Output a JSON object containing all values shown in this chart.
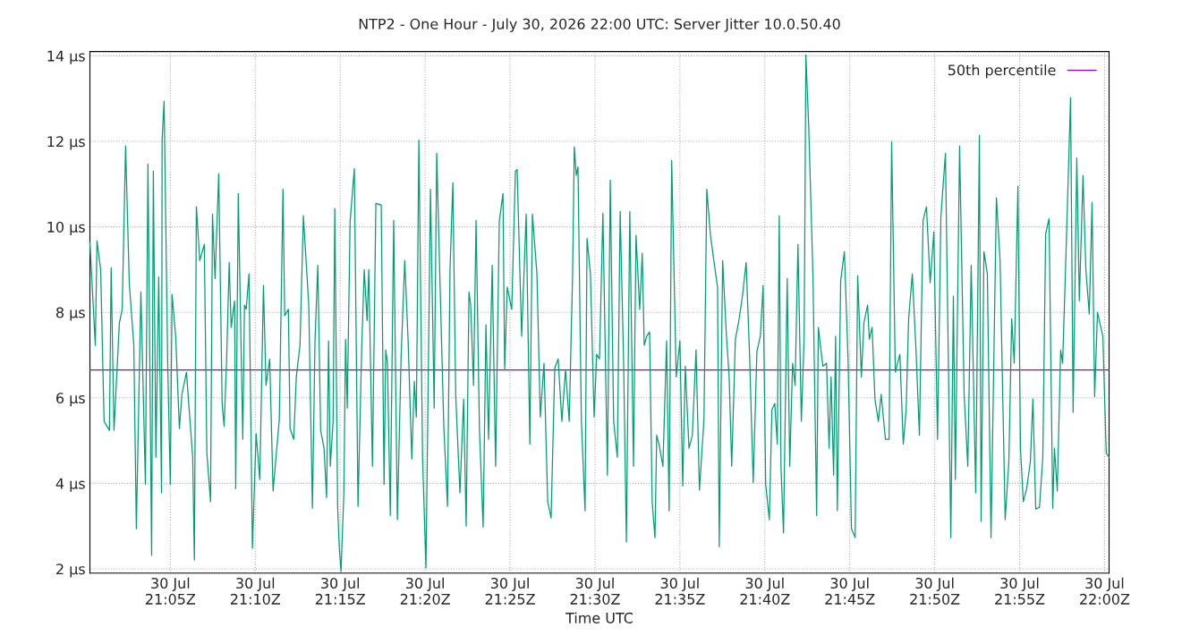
{
  "chart_data": {
    "type": "line",
    "title": "NTP2 - One Hour - July 30, 2026 22:00 UTC: Server Jitter 10.0.50.40",
    "xlabel": "Time UTC",
    "xlim": [
      "2026-07-30T21:00:16",
      "2026-07-30T22:00:16"
    ],
    "xticks": [
      {
        "value": "2026-07-30T21:05",
        "label": "30 Jul\n21:05Z"
      },
      {
        "value": "2026-07-30T21:10",
        "label": "30 Jul\n21:10Z"
      },
      {
        "value": "2026-07-30T21:15",
        "label": "30 Jul\n21:15Z"
      },
      {
        "value": "2026-07-30T21:20",
        "label": "30 Jul\n21:20Z"
      },
      {
        "value": "2026-07-30T21:25",
        "label": "30 Jul\n21:25Z"
      },
      {
        "value": "2026-07-30T21:30",
        "label": "30 Jul\n21:30Z"
      },
      {
        "value": "2026-07-30T21:35",
        "label": "30 Jul\n21:35Z"
      },
      {
        "value": "2026-07-30T21:40",
        "label": "30 Jul\n21:40Z"
      },
      {
        "value": "2026-07-30T21:45",
        "label": "30 Jul\n21:45Z"
      },
      {
        "value": "2026-07-30T21:50",
        "label": "30 Jul\n21:50Z"
      },
      {
        "value": "2026-07-30T21:55",
        "label": "30 Jul\n21:55Z"
      },
      {
        "value": "2026-07-30T22:00",
        "label": "30 Jul\n22:00Z"
      }
    ],
    "ylim": [
      1.9,
      14.1
    ],
    "yticks": [
      {
        "value": 2,
        "label": "2 µs"
      },
      {
        "value": 4,
        "label": "4 µs"
      },
      {
        "value": 6,
        "label": "6 µs"
      },
      {
        "value": 8,
        "label": "8 µs"
      },
      {
        "value": 10,
        "label": "10 µs"
      },
      {
        "value": 12,
        "label": "12 µs"
      },
      {
        "value": 14,
        "label": "14 µs"
      }
    ],
    "grid": true,
    "legend": "top right",
    "line_style": "solid",
    "series": [
      {
        "name": "50th percentile",
        "color": "#9400d3",
        "x": [
          "2026-07-30T21:00:16",
          "2026-07-30T22:00:16"
        ],
        "values": [
          6.65,
          6.65
        ]
      },
      {
        "color": "#009e73",
        "x": [
          "2026-07-30T21:00:16",
          "2026-07-30T21:00:35",
          "2026-07-30T21:00:41",
          "2026-07-30T21:00:54",
          "2026-07-30T21:01:06",
          "2026-07-30T21:01:25",
          "2026-07-30T21:01:31",
          "2026-07-30T21:01:41",
          "2026-07-30T21:02:00",
          "2026-07-30T21:02:10",
          "2026-07-30T21:02:22",
          "2026-07-30T21:02:35",
          "2026-07-30T21:02:51",
          "2026-07-30T21:03:00",
          "2026-07-30T21:03:16",
          "2026-07-30T21:03:32",
          "2026-07-30T21:03:41",
          "2026-07-30T21:03:54",
          "2026-07-30T21:04:00",
          "2026-07-30T21:04:09",
          "2026-07-30T21:04:19",
          "2026-07-30T21:04:29",
          "2026-07-30T21:04:31",
          "2026-07-30T21:04:38",
          "2026-07-30T21:04:51",
          "2026-07-30T21:05:00",
          "2026-07-30T21:05:06",
          "2026-07-30T21:05:19",
          "2026-07-30T21:05:32",
          "2026-07-30T21:05:41",
          "2026-07-30T21:05:57",
          "2026-07-30T21:06:19",
          "2026-07-30T21:06:25",
          "2026-07-30T21:06:32",
          "2026-07-30T21:06:44",
          "2026-07-30T21:07:00",
          "2026-07-30T21:07:09",
          "2026-07-30T21:07:22",
          "2026-07-30T21:07:29",
          "2026-07-30T21:07:38",
          "2026-07-30T21:07:51",
          "2026-07-30T21:08:03",
          "2026-07-30T21:08:10",
          "2026-07-30T21:08:19",
          "2026-07-30T21:08:28",
          "2026-07-30T21:08:35",
          "2026-07-30T21:08:47",
          "2026-07-30T21:08:51",
          "2026-07-30T21:09:00",
          "2026-07-30T21:09:16",
          "2026-07-30T21:09:22",
          "2026-07-30T21:09:28",
          "2026-07-30T21:09:38",
          "2026-07-30T21:09:50",
          "2026-07-30T21:10:03",
          "2026-07-30T21:10:16",
          "2026-07-30T21:10:29",
          "2026-07-30T21:10:38",
          "2026-07-30T21:10:51",
          "2026-07-30T21:11:03",
          "2026-07-30T21:11:16",
          "2026-07-30T21:11:25",
          "2026-07-30T21:11:38",
          "2026-07-30T21:11:44",
          "2026-07-30T21:11:57",
          "2026-07-30T21:12:03",
          "2026-07-30T21:12:16",
          "2026-07-30T21:12:25",
          "2026-07-30T21:12:38",
          "2026-07-30T21:12:50",
          "2026-07-30T21:13:09",
          "2026-07-30T21:13:22",
          "2026-07-30T21:13:31",
          "2026-07-30T21:13:41",
          "2026-07-30T21:13:51",
          "2026-07-30T21:14:03",
          "2026-07-30T21:14:12",
          "2026-07-30T21:14:19",
          "2026-07-30T21:14:25",
          "2026-07-30T21:14:35",
          "2026-07-30T21:14:41",
          "2026-07-30T21:14:51",
          "2026-07-30T21:14:57",
          "2026-07-30T21:15:03",
          "2026-07-30T21:15:13",
          "2026-07-30T21:15:19",
          "2026-07-30T21:15:25",
          "2026-07-30T21:15:35",
          "2026-07-30T21:15:50",
          "2026-07-30T21:16:03",
          "2026-07-30T21:16:16",
          "2026-07-30T21:16:25",
          "2026-07-30T21:16:35",
          "2026-07-30T21:16:41",
          "2026-07-30T21:16:54",
          "2026-07-30T21:17:06",
          "2026-07-30T21:17:25",
          "2026-07-30T21:17:35",
          "2026-07-30T21:17:41",
          "2026-07-30T21:17:47",
          "2026-07-30T21:17:57",
          "2026-07-30T21:18:09",
          "2026-07-30T21:18:22",
          "2026-07-30T21:18:35",
          "2026-07-30T21:18:48",
          "2026-07-30T21:19:00",
          "2026-07-30T21:19:13",
          "2026-07-30T21:19:22",
          "2026-07-30T21:19:29",
          "2026-07-30T21:19:38",
          "2026-07-30T21:19:51",
          "2026-07-30T21:20:03",
          "2026-07-30T21:20:19",
          "2026-07-30T21:20:32",
          "2026-07-30T21:20:41",
          "2026-07-30T21:20:54",
          "2026-07-30T21:21:06",
          "2026-07-30T21:21:19",
          "2026-07-30T21:21:28",
          "2026-07-30T21:21:38",
          "2026-07-30T21:21:48",
          "2026-07-30T21:22:03",
          "2026-07-30T21:22:16",
          "2026-07-30T21:22:25",
          "2026-07-30T21:22:35",
          "2026-07-30T21:22:41",
          "2026-07-30T21:22:51",
          "2026-07-30T21:23:00",
          "2026-07-30T21:23:12",
          "2026-07-30T21:23:25",
          "2026-07-30T21:23:35",
          "2026-07-30T21:23:44",
          "2026-07-30T21:23:57",
          "2026-07-30T21:24:09",
          "2026-07-30T21:24:22",
          "2026-07-30T21:24:35",
          "2026-07-30T21:24:41",
          "2026-07-30T21:24:50",
          "2026-07-30T21:25:06",
          "2026-07-30T21:25:19",
          "2026-07-30T21:25:25",
          "2026-07-30T21:25:41",
          "2026-07-30T21:25:57",
          "2026-07-30T21:26:10",
          "2026-07-30T21:26:19",
          "2026-07-30T21:26:35",
          "2026-07-30T21:26:47",
          "2026-07-30T21:27:00",
          "2026-07-30T21:27:13",
          "2026-07-30T21:27:25",
          "2026-07-30T21:27:38",
          "2026-07-30T21:27:50",
          "2026-07-30T21:28:03",
          "2026-07-30T21:28:16",
          "2026-07-30T21:28:29",
          "2026-07-30T21:28:41",
          "2026-07-30T21:28:47",
          "2026-07-30T21:28:54",
          "2026-07-30T21:29:00",
          "2026-07-30T21:29:12",
          "2026-07-30T21:29:25",
          "2026-07-30T21:29:32",
          "2026-07-30T21:29:44",
          "2026-07-30T21:29:57",
          "2026-07-30T21:30:06",
          "2026-07-30T21:30:16",
          "2026-07-30T21:30:28",
          "2026-07-30T21:30:44",
          "2026-07-30T21:30:54",
          "2026-07-30T21:31:06",
          "2026-07-30T21:31:19",
          "2026-07-30T21:31:29",
          "2026-07-30T21:31:41",
          "2026-07-30T21:31:51",
          "2026-07-30T21:32:03",
          "2026-07-30T21:32:16",
          "2026-07-30T21:32:25",
          "2026-07-30T21:32:38",
          "2026-07-30T21:32:47",
          "2026-07-30T21:32:54",
          "2026-07-30T21:33:03",
          "2026-07-30T21:33:13",
          "2026-07-30T21:33:22",
          "2026-07-30T21:33:32",
          "2026-07-30T21:33:38",
          "2026-07-30T21:33:48",
          "2026-07-30T21:34:00",
          "2026-07-30T21:34:13",
          "2026-07-30T21:34:22",
          "2026-07-30T21:34:31",
          "2026-07-30T21:34:47",
          "2026-07-30T21:35:00",
          "2026-07-30T21:35:10",
          "2026-07-30T21:35:19",
          "2026-07-30T21:35:32",
          "2026-07-30T21:35:44",
          "2026-07-30T21:35:57",
          "2026-07-30T21:36:09",
          "2026-07-30T21:36:25",
          "2026-07-30T21:36:35",
          "2026-07-30T21:36:48",
          "2026-07-30T21:37:00",
          "2026-07-30T21:37:13",
          "2026-07-30T21:37:19",
          "2026-07-30T21:37:31",
          "2026-07-30T21:37:44",
          "2026-07-30T21:37:54",
          "2026-07-30T21:38:03",
          "2026-07-30T21:38:16",
          "2026-07-30T21:38:28",
          "2026-07-30T21:38:41",
          "2026-07-30T21:38:54",
          "2026-07-30T21:39:06",
          "2026-07-30T21:39:19",
          "2026-07-30T21:39:32",
          "2026-07-30T21:39:44",
          "2026-07-30T21:39:54",
          "2026-07-30T21:40:03",
          "2026-07-30T21:40:16",
          "2026-07-30T21:40:25",
          "2026-07-30T21:40:35",
          "2026-07-30T21:40:44",
          "2026-07-30T21:40:51",
          "2026-07-30T21:40:57",
          "2026-07-30T21:41:06",
          "2026-07-30T21:41:19",
          "2026-07-30T21:41:28",
          "2026-07-30T21:41:38",
          "2026-07-30T21:41:47",
          "2026-07-30T21:41:57",
          "2026-07-30T21:42:09",
          "2026-07-30T21:42:19",
          "2026-07-30T21:42:25",
          "2026-07-30T21:42:35",
          "2026-07-30T21:42:50",
          "2026-07-30T21:43:03",
          "2026-07-30T21:43:09",
          "2026-07-30T21:43:25",
          "2026-07-30T21:43:38",
          "2026-07-30T21:43:47",
          "2026-07-30T21:43:54",
          "2026-07-30T21:44:03",
          "2026-07-30T21:44:10",
          "2026-07-30T21:44:16",
          "2026-07-30T21:44:28",
          "2026-07-30T21:44:41",
          "2026-07-30T21:44:54",
          "2026-07-30T21:45:06",
          "2026-07-30T21:45:19",
          "2026-07-30T21:45:28",
          "2026-07-30T21:45:41",
          "2026-07-30T21:45:50",
          "2026-07-30T21:46:03",
          "2026-07-30T21:46:09",
          "2026-07-30T21:46:19",
          "2026-07-30T21:46:29",
          "2026-07-30T21:46:41",
          "2026-07-30T21:46:51",
          "2026-07-30T21:47:06",
          "2026-07-30T21:47:19",
          "2026-07-30T21:47:28",
          "2026-07-30T21:47:41",
          "2026-07-30T21:47:57",
          "2026-07-30T21:48:09",
          "2026-07-30T21:48:19",
          "2026-07-30T21:48:28",
          "2026-07-30T21:48:41",
          "2026-07-30T21:48:54",
          "2026-07-30T21:49:06",
          "2026-07-30T21:49:19",
          "2026-07-30T21:49:31",
          "2026-07-30T21:49:44",
          "2026-07-30T21:49:57",
          "2026-07-30T21:50:10",
          "2026-07-30T21:50:22",
          "2026-07-30T21:50:38",
          "2026-07-30T21:50:57",
          "2026-07-30T21:51:06",
          "2026-07-30T21:51:13",
          "2026-07-30T21:51:28",
          "2026-07-30T21:51:44",
          "2026-07-30T21:51:57",
          "2026-07-30T21:52:09",
          "2026-07-30T21:52:25",
          "2026-07-30T21:52:38",
          "2026-07-30T21:52:44",
          "2026-07-30T21:52:54",
          "2026-07-30T21:53:06",
          "2026-07-30T21:53:19",
          "2026-07-30T21:53:38",
          "2026-07-30T21:53:51",
          "2026-07-30T21:54:09",
          "2026-07-30T21:54:22",
          "2026-07-30T21:54:32",
          "2026-07-30T21:54:41",
          "2026-07-30T21:54:54",
          "2026-07-30T21:55:03",
          "2026-07-30T21:55:13",
          "2026-07-30T21:55:25",
          "2026-07-30T21:55:38",
          "2026-07-30T21:55:47",
          "2026-07-30T21:55:57",
          "2026-07-30T21:56:10",
          "2026-07-30T21:56:22",
          "2026-07-30T21:56:32",
          "2026-07-30T21:56:44",
          "2026-07-30T21:56:57",
          "2026-07-30T21:57:03",
          "2026-07-30T21:57:13",
          "2026-07-30T21:57:25",
          "2026-07-30T21:57:32",
          "2026-07-30T21:57:44",
          "2026-07-30T21:58:00",
          "2026-07-30T21:58:09",
          "2026-07-30T21:58:22",
          "2026-07-30T21:58:31",
          "2026-07-30T21:58:44",
          "2026-07-30T21:58:54",
          "2026-07-30T21:59:06",
          "2026-07-30T21:59:16",
          "2026-07-30T21:59:25",
          "2026-07-30T21:59:35",
          "2026-07-30T21:59:54",
          "2026-07-30T22:00:06",
          "2026-07-30T22:00:16"
        ],
        "values": [
          9.63,
          7.23,
          9.67,
          9.0,
          5.45,
          5.24,
          9.04,
          5.24,
          7.75,
          8.07,
          11.89,
          8.69,
          7.23,
          2.94,
          8.48,
          3.98,
          11.47,
          2.32,
          11.3,
          4.61,
          8.83,
          3.78,
          12.03,
          12.94,
          6.7,
          3.98,
          8.42,
          7.44,
          5.28,
          6.08,
          6.6,
          4.61,
          2.21,
          10.47,
          9.21,
          9.59,
          4.71,
          3.57,
          10.3,
          8.79,
          11.24,
          5.87,
          5.34,
          6.91,
          9.17,
          7.65,
          8.27,
          3.88,
          10.78,
          5.03,
          8.17,
          8.07,
          8.9,
          2.48,
          5.16,
          4.09,
          8.63,
          6.29,
          6.91,
          3.82,
          4.82,
          5.49,
          10.88,
          7.92,
          8.07,
          5.28,
          5.03,
          6.49,
          7.23,
          10.26,
          8.17,
          3.42,
          7.33,
          9.1,
          5.24,
          4.82,
          3.67,
          7.33,
          4.4,
          5.45,
          10.43,
          3.46,
          2.48,
          1.94,
          3.78,
          7.37,
          5.76,
          10.12,
          11.36,
          3.46,
          7.16,
          9.0,
          7.81,
          9.0,
          4.4,
          10.55,
          10.51,
          3.98,
          7.12,
          6.81,
          3.25,
          10.15,
          3.15,
          6.91,
          9.21,
          7.33,
          4.57,
          6.39,
          5.55,
          12.03,
          4.61,
          2.02,
          10.88,
          5.76,
          11.72,
          8.34,
          5.34,
          3.46,
          9.0,
          11.03,
          6.08,
          3.78,
          5.97,
          3.0,
          8.48,
          8.17,
          6.29,
          10.15,
          5.24,
          2.98,
          7.71,
          5.03,
          9.1,
          4.4,
          10.12,
          10.78,
          6.66,
          8.59,
          8.07,
          11.3,
          11.34,
          7.44,
          10.3,
          4.92,
          10.3,
          8.9,
          5.55,
          6.81,
          3.57,
          3.19,
          6.7,
          6.91,
          5.45,
          6.66,
          5.45,
          8.9,
          11.87,
          11.2,
          11.4,
          5.45,
          3.36,
          9.73,
          8.9,
          5.55,
          7.02,
          6.91,
          10.32,
          4.19,
          11.09,
          5.45,
          4.61,
          10.36,
          6.91,
          2.63,
          10.36,
          4.4,
          9.8,
          8.07,
          9.38,
          7.23,
          7.44,
          7.54,
          3.57,
          2.73,
          5.13,
          4.86,
          4.4,
          7.33,
          3.36,
          11.55,
          6.49,
          7.33,
          3.94,
          6.74,
          4.82,
          5.13,
          7.12,
          3.84,
          5.49,
          10.88,
          9.8,
          9.21,
          8.59,
          2.52,
          9.21,
          7.5,
          6.49,
          4.4,
          7.37,
          7.79,
          8.38,
          9.17,
          7.02,
          4.02,
          7.08,
          7.44,
          8.63,
          3.98,
          3.15,
          5.72,
          5.87,
          4.92,
          10.26,
          4.4,
          2.84,
          8.79,
          4.4,
          6.81,
          6.29,
          9.59,
          5.45,
          7.44,
          14.02,
          12.36,
          8.86,
          3.25,
          7.65,
          6.74,
          6.81,
          4.82,
          6.49,
          4.19,
          7.44,
          3.36,
          8.75,
          9.42,
          6.91,
          2.94,
          2.73,
          8.86,
          6.49,
          7.75,
          8.17,
          7.37,
          7.65,
          5.97,
          5.45,
          6.08,
          5.03,
          5.03,
          11.99,
          6.6,
          7.02,
          4.92,
          5.7,
          7.85,
          8.9,
          7.12,
          5.13,
          10.15,
          10.47,
          8.69,
          9.88,
          5.03,
          10.26,
          11.72,
          2.73,
          8.38,
          4.09,
          11.89,
          6.08,
          4.4,
          9.1,
          3.78,
          12.14,
          3.11,
          9.42,
          8.9,
          2.73,
          10.68,
          9.21,
          3.15,
          4.51,
          7.85,
          6.81,
          10.95,
          4.82,
          3.57,
          3.88,
          4.51,
          5.97,
          3.4,
          3.44,
          4.61,
          9.84,
          10.19,
          3.42,
          4.82,
          3.82,
          7.12,
          6.81,
          9.42,
          13.02,
          5.66,
          11.61,
          8.27,
          11.2,
          9.0,
          7.96,
          10.57,
          6.03,
          8.0,
          7.44,
          4.71,
          4.61
        ]
      }
    ]
  }
}
